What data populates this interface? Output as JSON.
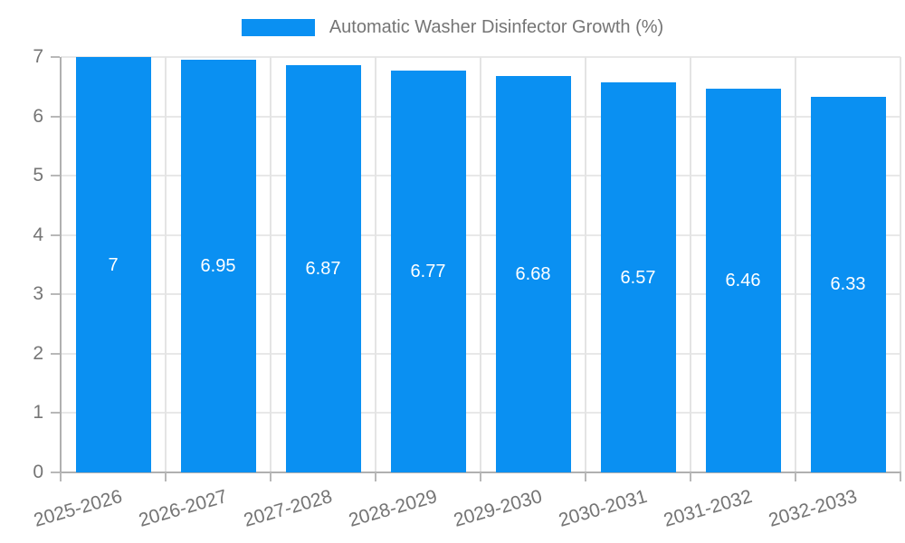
{
  "legend": {
    "label": "Automatic Washer Disinfector Growth (%)"
  },
  "chart_data": {
    "type": "bar",
    "title": "Automatic Washer Disinfector Growth (%)",
    "categories": [
      "2025-2026",
      "2026-2027",
      "2027-2028",
      "2028-2029",
      "2029-2030",
      "2030-2031",
      "2031-2032",
      "2032-2033"
    ],
    "values": [
      7,
      6.95,
      6.87,
      6.77,
      6.68,
      6.57,
      6.46,
      6.33
    ],
    "value_labels": [
      "7",
      "6.95",
      "6.87",
      "6.77",
      "6.68",
      "6.57",
      "6.46",
      "6.33"
    ],
    "xlabel": "",
    "ylabel": "",
    "ylim": [
      0,
      7
    ],
    "y_ticks": [
      0,
      1,
      2,
      3,
      4,
      5,
      6,
      7
    ],
    "grid": true,
    "legend_position": "top-center",
    "colors": {
      "bar": "#0a90f2",
      "grid_horizontal": "#e8e8e8",
      "grid_vertical": "#e4e4e4",
      "axis": "#b0b0b0",
      "tick": "#b8b8b8",
      "text": "#757575",
      "value_label": "#ffffff",
      "background": "#ffffff"
    }
  }
}
